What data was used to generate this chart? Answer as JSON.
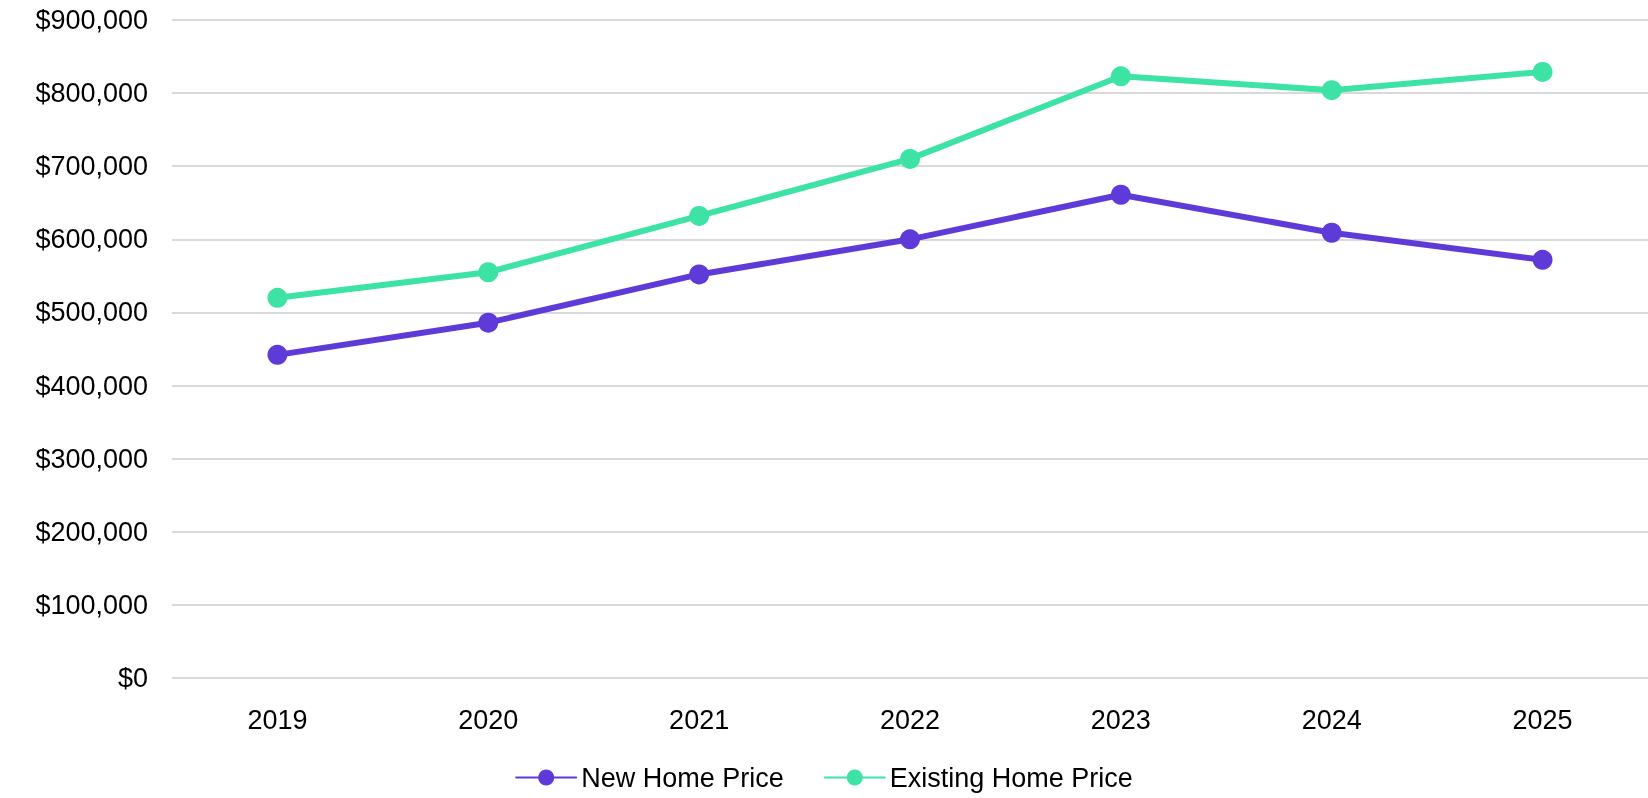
{
  "chart_data": {
    "type": "line",
    "categories": [
      "2019",
      "2020",
      "2021",
      "2022",
      "2023",
      "2024",
      "2025"
    ],
    "series": [
      {
        "name": "New Home Price",
        "color": "#5e3bd8",
        "values": [
          442000,
          486000,
          552000,
          600000,
          661000,
          609000,
          572000
        ]
      },
      {
        "name": "Existing Home Price",
        "color": "#3de3a5",
        "values": [
          520000,
          555000,
          632000,
          710000,
          823000,
          804000,
          829000
        ]
      }
    ],
    "ylim": [
      0,
      900000
    ],
    "yticks": [
      {
        "value": 0,
        "label": "$0"
      },
      {
        "value": 100000,
        "label": "$100,000"
      },
      {
        "value": 200000,
        "label": "$200,000"
      },
      {
        "value": 300000,
        "label": "$300,000"
      },
      {
        "value": 400000,
        "label": "$400,000"
      },
      {
        "value": 500000,
        "label": "$500,000"
      },
      {
        "value": 600000,
        "label": "$600,000"
      },
      {
        "value": 700000,
        "label": "$700,000"
      },
      {
        "value": 800000,
        "label": "$800,000"
      },
      {
        "value": 900000,
        "label": "$900,000"
      }
    ],
    "grid": "y",
    "legend": "bottom",
    "marker": "circle",
    "line_style": "solid"
  }
}
